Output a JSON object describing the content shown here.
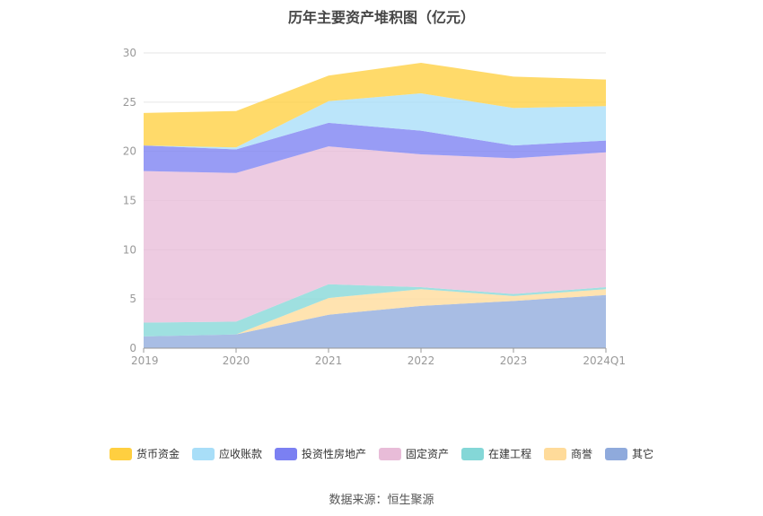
{
  "chart_data": {
    "type": "area",
    "title": "历年主要资产堆积图（亿元）",
    "categories": [
      "2019",
      "2020",
      "2021",
      "2022",
      "2023",
      "2024Q1"
    ],
    "ylim": [
      0,
      30
    ],
    "yticks": [
      0,
      5,
      10,
      15,
      20,
      25,
      30
    ],
    "grid": true,
    "legend_position": "bottom",
    "series": [
      {
        "name": "其它",
        "color": "#8faadc",
        "values": [
          1.2,
          1.4,
          3.4,
          4.3,
          4.8,
          5.4
        ]
      },
      {
        "name": "商誉",
        "color": "#ffdb9a",
        "values": [
          0.0,
          0.0,
          1.7,
          1.7,
          0.5,
          0.6
        ]
      },
      {
        "name": "在建工程",
        "color": "#84d7d7",
        "values": [
          1.4,
          1.3,
          1.4,
          0.2,
          0.2,
          0.2
        ]
      },
      {
        "name": "固定资产",
        "color": "#e8bcd8",
        "values": [
          15.4,
          15.1,
          14.0,
          13.5,
          13.8,
          13.7
        ]
      },
      {
        "name": "投资性房地产",
        "color": "#7b80f2",
        "values": [
          2.6,
          2.4,
          2.4,
          2.4,
          1.3,
          1.2
        ]
      },
      {
        "name": "应收账款",
        "color": "#a8def8",
        "values": [
          0.0,
          0.2,
          2.2,
          3.8,
          3.8,
          3.5
        ]
      },
      {
        "name": "货币资金",
        "color": "#ffcf40",
        "values": [
          3.3,
          3.7,
          2.6,
          3.1,
          3.2,
          2.7
        ]
      }
    ],
    "legend_order": [
      "货币资金",
      "应收账款",
      "投资性房地产",
      "固定资产",
      "在建工程",
      "商誉",
      "其它"
    ],
    "source": "数据来源：恒生聚源"
  }
}
